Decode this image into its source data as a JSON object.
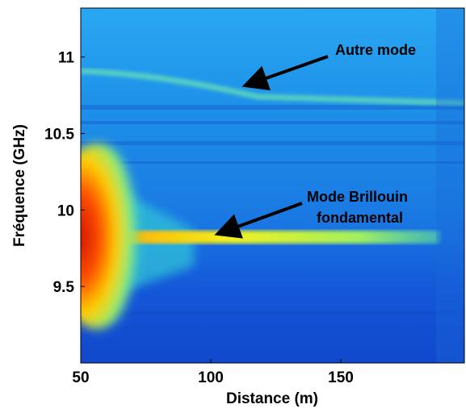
{
  "chart_data": {
    "type": "heatmap",
    "xlabel": "Distance (m)",
    "ylabel": "Fréquence (GHz)",
    "xlim": [
      50,
      197.5
    ],
    "xticks": [
      50,
      100,
      150
    ],
    "ylim": [
      9.0,
      11.32
    ],
    "yticks": [
      9.5,
      10,
      10.5,
      11
    ],
    "annotations": [
      {
        "lines": [
          "Autre mode"
        ],
        "xy": [
          114.3,
          10.82
        ]
      },
      {
        "lines": [
          "Mode Brillouin",
          "fondamental"
        ],
        "xy": [
          103.7,
          9.85
        ]
      }
    ]
  }
}
